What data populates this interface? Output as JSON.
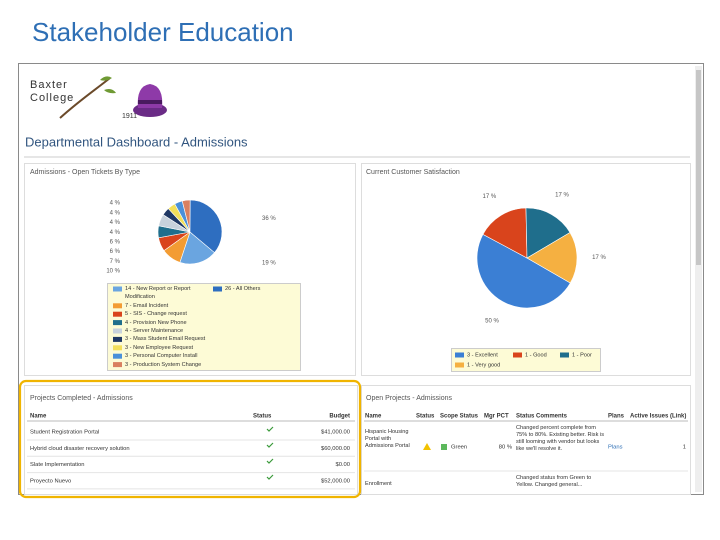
{
  "slide_title": "Stakeholder Education",
  "logo": {
    "name_line1": "Baxter",
    "name_line2": "College",
    "year": "1911"
  },
  "dashboard_title": "Departmental Dashboard - Admissions",
  "tickets_panel": {
    "title": "Admissions - Open Tickets By Type",
    "chart": {
      "type": "pie",
      "categories": [
        "14 - New Report or Report Modification",
        "7 - Email Incident",
        "5 - SIS - Change request",
        "4 - Provision New Phone",
        "4 - Server Maintenance",
        "3 - Mass Student Email Request",
        "3 - New Employee Request",
        "3 - Personal Computer Install",
        "3 - Production System Change",
        "26 - All Others"
      ],
      "values": [
        19,
        10,
        7,
        6,
        6,
        4,
        4,
        4,
        4,
        36
      ],
      "value_labels": [
        "19 %",
        "10 %",
        "7 %",
        "6 %",
        "6 %",
        "4 %",
        "4 %",
        "4 %",
        "4 %",
        "36 %"
      ],
      "colors": [
        "#6aa5e0",
        "#f39c33",
        "#d9441c",
        "#1f6e8c",
        "#c8d2dc",
        "#1f3864",
        "#f2df5a",
        "#4a90d9",
        "#d98060",
        "#2e6ec0"
      ]
    }
  },
  "satisfaction_panel": {
    "title": "Current Customer Satisfaction",
    "chart": {
      "type": "pie",
      "categories": [
        "3 - Excellent",
        "1 - Good",
        "1 - Poor",
        "1 - Very good"
      ],
      "values": [
        50,
        17,
        17,
        17
      ],
      "value_labels": [
        "50 %",
        "17 %",
        "17 %",
        "17 %"
      ],
      "colors": [
        "#3b7fd4",
        "#d9441c",
        "#1f6e8c",
        "#f5b041"
      ]
    }
  },
  "completed_projects": {
    "title": "Projects Completed - Admissions",
    "columns": [
      "Name",
      "Status",
      "Budget"
    ],
    "rows": [
      [
        "Student Registration Portal",
        "$41,000.00"
      ],
      [
        "Hybrid cloud disaster recovery solution",
        "$60,000.00"
      ],
      [
        "Slate Implementation",
        "$0.00"
      ],
      [
        "Proyecto Nuevo",
        "$52,000.00"
      ]
    ]
  },
  "open_projects": {
    "title": "Open Projects - Admissions",
    "columns": [
      "Name",
      "Status",
      "Scope Status",
      "Mgr PCT",
      "Status Comments",
      "Plans",
      "Active Issues (Link)"
    ],
    "rows": [
      {
        "name": "Hispanic Housing Portal with Admissions Portal",
        "scope_status": "Green",
        "mgr_pct": "80 %",
        "comments": "Changed percent complete from 75% to 80%. Existing better. Risk is still looming with vendor but looks like we'll resolve it.",
        "plans": "Plans",
        "active_issues": "1"
      },
      {
        "name": "Enrollment",
        "comments": "Changed status from Green to Yellow. Changed general..."
      }
    ]
  }
}
